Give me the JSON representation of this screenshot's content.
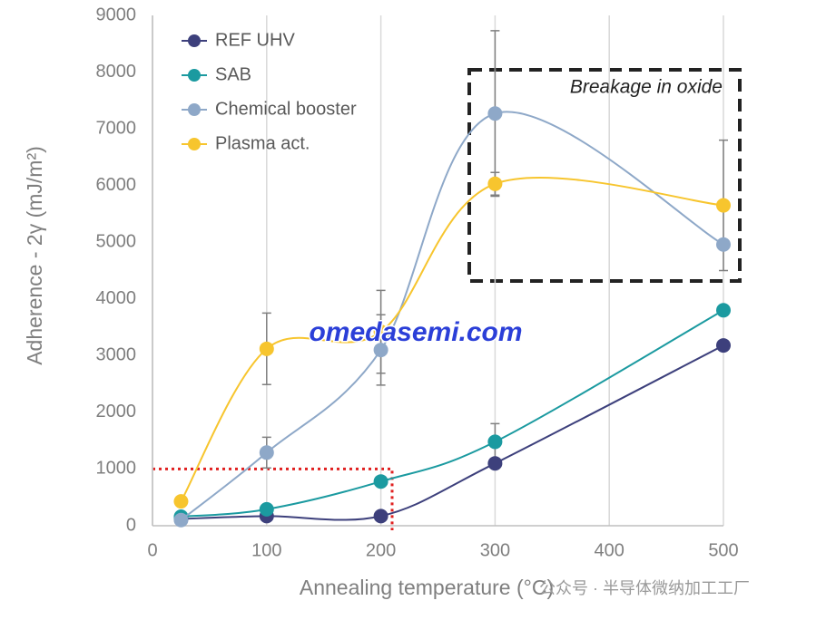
{
  "chart_data": {
    "type": "line",
    "x_label": "Annealing temperature (°C)",
    "y_label": "Adherence - 2γ (mJ/m²)",
    "x": [
      25,
      100,
      200,
      300,
      500
    ],
    "series": [
      {
        "name": "REF UHV",
        "color": "#3d407c",
        "values": [
          120,
          170,
          170,
          1100,
          3180
        ],
        "errors": [
          null,
          null,
          null,
          null,
          null
        ]
      },
      {
        "name": "SAB",
        "color": "#1b9aa0",
        "values": [
          160,
          290,
          780,
          1480,
          3800
        ],
        "errors": [
          null,
          null,
          null,
          320,
          null
        ]
      },
      {
        "name": "Chemical booster",
        "color": "#8ea8c8",
        "values": [
          100,
          1290,
          3100,
          7270,
          4960
        ],
        "errors": [
          null,
          270,
          620,
          1460,
          null
        ]
      },
      {
        "name": "Plasma act.",
        "color": "#f7c52e",
        "values": [
          430,
          3120,
          3420,
          6030,
          5650
        ],
        "errors": [
          null,
          630,
          730,
          200,
          1150
        ]
      }
    ],
    "xlim": [
      0,
      500
    ],
    "xticks": [
      0,
      100,
      200,
      300,
      400,
      500
    ],
    "ylim": [
      0,
      9000
    ],
    "yticks": [
      0,
      1000,
      2000,
      3000,
      4000,
      5000,
      6000,
      7000,
      8000,
      9000
    ],
    "grid": "x",
    "smooth": true,
    "legend": "top-left",
    "annotation": "Breakage in oxide",
    "watermark": "omedasemi.com",
    "watermark2": "公众号 · 半导体微纳加工工厂"
  }
}
